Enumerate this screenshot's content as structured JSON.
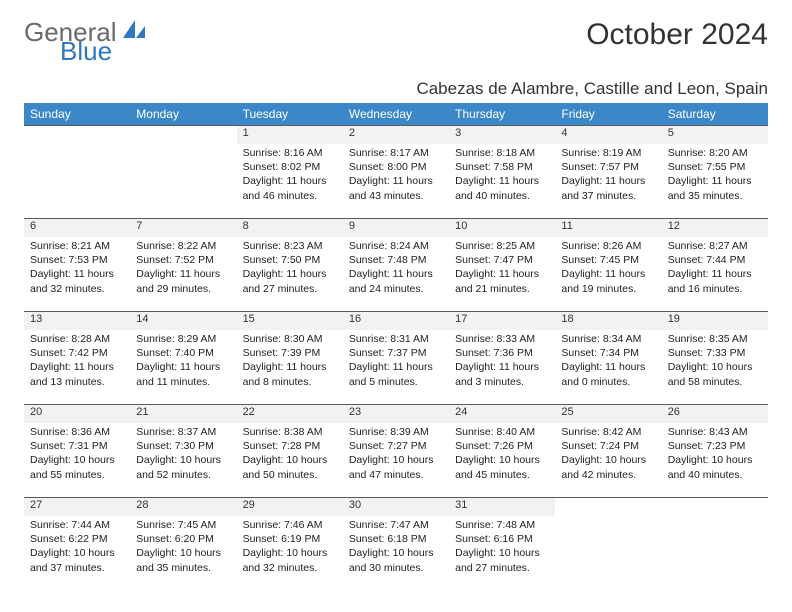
{
  "brand": {
    "general": "General",
    "blue": "Blue"
  },
  "title": "October 2024",
  "location": "Cabezas de Alambre, Castille and Leon, Spain",
  "colors": {
    "header_bg": "#3b87c8",
    "header_fg": "#ffffff",
    "daynum_bg": "#f2f2f2",
    "rule": "#5a5a5a",
    "text": "#222222",
    "logo_gray": "#6a6a6a",
    "logo_blue": "#2f78bd"
  },
  "weekdays": [
    "Sunday",
    "Monday",
    "Tuesday",
    "Wednesday",
    "Thursday",
    "Friday",
    "Saturday"
  ],
  "weeks": [
    [
      null,
      null,
      {
        "n": "1",
        "sr": "Sunrise: 8:16 AM",
        "ss": "Sunset: 8:02 PM",
        "d1": "Daylight: 11 hours",
        "d2": "and 46 minutes."
      },
      {
        "n": "2",
        "sr": "Sunrise: 8:17 AM",
        "ss": "Sunset: 8:00 PM",
        "d1": "Daylight: 11 hours",
        "d2": "and 43 minutes."
      },
      {
        "n": "3",
        "sr": "Sunrise: 8:18 AM",
        "ss": "Sunset: 7:58 PM",
        "d1": "Daylight: 11 hours",
        "d2": "and 40 minutes."
      },
      {
        "n": "4",
        "sr": "Sunrise: 8:19 AM",
        "ss": "Sunset: 7:57 PM",
        "d1": "Daylight: 11 hours",
        "d2": "and 37 minutes."
      },
      {
        "n": "5",
        "sr": "Sunrise: 8:20 AM",
        "ss": "Sunset: 7:55 PM",
        "d1": "Daylight: 11 hours",
        "d2": "and 35 minutes."
      }
    ],
    [
      {
        "n": "6",
        "sr": "Sunrise: 8:21 AM",
        "ss": "Sunset: 7:53 PM",
        "d1": "Daylight: 11 hours",
        "d2": "and 32 minutes."
      },
      {
        "n": "7",
        "sr": "Sunrise: 8:22 AM",
        "ss": "Sunset: 7:52 PM",
        "d1": "Daylight: 11 hours",
        "d2": "and 29 minutes."
      },
      {
        "n": "8",
        "sr": "Sunrise: 8:23 AM",
        "ss": "Sunset: 7:50 PM",
        "d1": "Daylight: 11 hours",
        "d2": "and 27 minutes."
      },
      {
        "n": "9",
        "sr": "Sunrise: 8:24 AM",
        "ss": "Sunset: 7:48 PM",
        "d1": "Daylight: 11 hours",
        "d2": "and 24 minutes."
      },
      {
        "n": "10",
        "sr": "Sunrise: 8:25 AM",
        "ss": "Sunset: 7:47 PM",
        "d1": "Daylight: 11 hours",
        "d2": "and 21 minutes."
      },
      {
        "n": "11",
        "sr": "Sunrise: 8:26 AM",
        "ss": "Sunset: 7:45 PM",
        "d1": "Daylight: 11 hours",
        "d2": "and 19 minutes."
      },
      {
        "n": "12",
        "sr": "Sunrise: 8:27 AM",
        "ss": "Sunset: 7:44 PM",
        "d1": "Daylight: 11 hours",
        "d2": "and 16 minutes."
      }
    ],
    [
      {
        "n": "13",
        "sr": "Sunrise: 8:28 AM",
        "ss": "Sunset: 7:42 PM",
        "d1": "Daylight: 11 hours",
        "d2": "and 13 minutes."
      },
      {
        "n": "14",
        "sr": "Sunrise: 8:29 AM",
        "ss": "Sunset: 7:40 PM",
        "d1": "Daylight: 11 hours",
        "d2": "and 11 minutes."
      },
      {
        "n": "15",
        "sr": "Sunrise: 8:30 AM",
        "ss": "Sunset: 7:39 PM",
        "d1": "Daylight: 11 hours",
        "d2": "and 8 minutes."
      },
      {
        "n": "16",
        "sr": "Sunrise: 8:31 AM",
        "ss": "Sunset: 7:37 PM",
        "d1": "Daylight: 11 hours",
        "d2": "and 5 minutes."
      },
      {
        "n": "17",
        "sr": "Sunrise: 8:33 AM",
        "ss": "Sunset: 7:36 PM",
        "d1": "Daylight: 11 hours",
        "d2": "and 3 minutes."
      },
      {
        "n": "18",
        "sr": "Sunrise: 8:34 AM",
        "ss": "Sunset: 7:34 PM",
        "d1": "Daylight: 11 hours",
        "d2": "and 0 minutes."
      },
      {
        "n": "19",
        "sr": "Sunrise: 8:35 AM",
        "ss": "Sunset: 7:33 PM",
        "d1": "Daylight: 10 hours",
        "d2": "and 58 minutes."
      }
    ],
    [
      {
        "n": "20",
        "sr": "Sunrise: 8:36 AM",
        "ss": "Sunset: 7:31 PM",
        "d1": "Daylight: 10 hours",
        "d2": "and 55 minutes."
      },
      {
        "n": "21",
        "sr": "Sunrise: 8:37 AM",
        "ss": "Sunset: 7:30 PM",
        "d1": "Daylight: 10 hours",
        "d2": "and 52 minutes."
      },
      {
        "n": "22",
        "sr": "Sunrise: 8:38 AM",
        "ss": "Sunset: 7:28 PM",
        "d1": "Daylight: 10 hours",
        "d2": "and 50 minutes."
      },
      {
        "n": "23",
        "sr": "Sunrise: 8:39 AM",
        "ss": "Sunset: 7:27 PM",
        "d1": "Daylight: 10 hours",
        "d2": "and 47 minutes."
      },
      {
        "n": "24",
        "sr": "Sunrise: 8:40 AM",
        "ss": "Sunset: 7:26 PM",
        "d1": "Daylight: 10 hours",
        "d2": "and 45 minutes."
      },
      {
        "n": "25",
        "sr": "Sunrise: 8:42 AM",
        "ss": "Sunset: 7:24 PM",
        "d1": "Daylight: 10 hours",
        "d2": "and 42 minutes."
      },
      {
        "n": "26",
        "sr": "Sunrise: 8:43 AM",
        "ss": "Sunset: 7:23 PM",
        "d1": "Daylight: 10 hours",
        "d2": "and 40 minutes."
      }
    ],
    [
      {
        "n": "27",
        "sr": "Sunrise: 7:44 AM",
        "ss": "Sunset: 6:22 PM",
        "d1": "Daylight: 10 hours",
        "d2": "and 37 minutes."
      },
      {
        "n": "28",
        "sr": "Sunrise: 7:45 AM",
        "ss": "Sunset: 6:20 PM",
        "d1": "Daylight: 10 hours",
        "d2": "and 35 minutes."
      },
      {
        "n": "29",
        "sr": "Sunrise: 7:46 AM",
        "ss": "Sunset: 6:19 PM",
        "d1": "Daylight: 10 hours",
        "d2": "and 32 minutes."
      },
      {
        "n": "30",
        "sr": "Sunrise: 7:47 AM",
        "ss": "Sunset: 6:18 PM",
        "d1": "Daylight: 10 hours",
        "d2": "and 30 minutes."
      },
      {
        "n": "31",
        "sr": "Sunrise: 7:48 AM",
        "ss": "Sunset: 6:16 PM",
        "d1": "Daylight: 10 hours",
        "d2": "and 27 minutes."
      },
      null,
      null
    ]
  ]
}
